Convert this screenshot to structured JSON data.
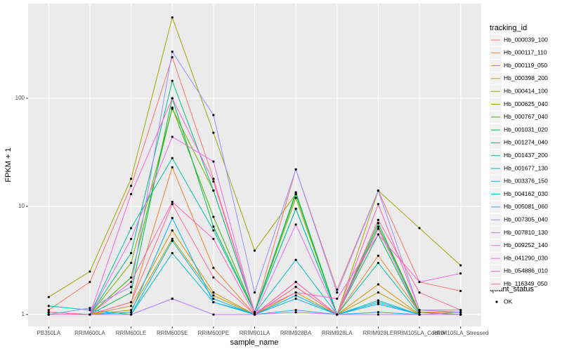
{
  "chart_data": {
    "type": "line",
    "x_label": "sample_name",
    "y_label": "FPKM + 1",
    "legend_title": "tracking_id",
    "legend2_title": "quant_status",
    "legend2_entries": [
      "OK"
    ],
    "log_scale": true,
    "grid": true,
    "legend_position": "right",
    "categories": [
      "PB350LA",
      "RRIM600LA",
      "RRIM600LE",
      "RRIM600SE",
      "RRIM600PE",
      "RRIM901LA",
      "RRIM928BA",
      "RRIM928LA",
      "RRIM928LE",
      "RRIM105LA_Control",
      "RRIM105LA_Stressed"
    ],
    "ylim": [
      0.776,
      753
    ],
    "yticks": [
      1,
      10,
      100
    ],
    "series": [
      {
        "name": "Hb_000039_100",
        "color": "#F8766D",
        "values": [
          1.1,
          2.0,
          15.5,
          240,
          18,
          1.05,
          22,
          1.7,
          14,
          2.0,
          1.65
        ]
      },
      {
        "name": "Hb_000117_110",
        "color": "#EA8331",
        "values": [
          1.05,
          1.0,
          1.3,
          23,
          2.7,
          1.0,
          2.0,
          1.0,
          3.5,
          1.05,
          1.05
        ]
      },
      {
        "name": "Hb_000119_050",
        "color": "#D89000",
        "values": [
          1.0,
          1.0,
          1.2,
          6.0,
          1.6,
          1.0,
          1.8,
          1.0,
          1.9,
          1.0,
          1.0
        ]
      },
      {
        "name": "Hb_000398_200",
        "color": "#C09B00",
        "values": [
          1.0,
          1.0,
          1.1,
          5.0,
          1.5,
          1.0,
          1.6,
          1.0,
          1.6,
          1.0,
          1.0
        ]
      },
      {
        "name": "Hb_000414_100",
        "color": "#A3A500",
        "values": [
          1.45,
          2.5,
          18,
          560,
          48,
          3.9,
          13,
          1.0,
          14,
          6.3,
          2.85
        ]
      },
      {
        "name": "Hb_000625_040",
        "color": "#7CAE00",
        "values": [
          1.0,
          1.0,
          3.0,
          80,
          14,
          1.05,
          12,
          1.0,
          7,
          1.05,
          1.0
        ]
      },
      {
        "name": "Hb_000767_040",
        "color": "#39B600",
        "values": [
          1.0,
          1.0,
          2.2,
          82,
          8,
          1.05,
          13,
          1.0,
          6.5,
          1.05,
          1.0
        ]
      },
      {
        "name": "Hb_001031_020",
        "color": "#00BB4E",
        "values": [
          1.0,
          1.0,
          1.6,
          100,
          6.5,
          1.05,
          9.5,
          1.0,
          5.5,
          1.0,
          1.0
        ]
      },
      {
        "name": "Hb_001274_040",
        "color": "#00BF7D",
        "values": [
          1.0,
          1.0,
          3.7,
          145,
          14,
          1.05,
          13.5,
          1.0,
          7,
          1.0,
          1.0
        ]
      },
      {
        "name": "Hb_001437_200",
        "color": "#00C1A3",
        "values": [
          1.0,
          1.0,
          6.3,
          28,
          6,
          1.05,
          9.5,
          1.0,
          3.0,
          1.0,
          1.0
        ]
      },
      {
        "name": "Hb_001677_130",
        "color": "#00BFC4",
        "values": [
          1.2,
          1.1,
          1.0,
          3.7,
          1.3,
          1.02,
          3.2,
          1.0,
          1.35,
          1.0,
          1.0
        ]
      },
      {
        "name": "Hb_003376_150",
        "color": "#00BAE0",
        "values": [
          1.0,
          1.0,
          1.0,
          4.8,
          1.4,
          1.0,
          1.4,
          1.0,
          1.3,
          1.0,
          1.0
        ]
      },
      {
        "name": "Hb_004162_030",
        "color": "#00B0F6",
        "values": [
          1.0,
          1.0,
          1.05,
          7.8,
          1.3,
          1.0,
          1.5,
          1.0,
          1.25,
          1.0,
          1.0
        ]
      },
      {
        "name": "Hb_005081_060",
        "color": "#35A2FF",
        "values": [
          1.0,
          1.0,
          1.0,
          1.4,
          1.0,
          1.0,
          1.1,
          1.0,
          1.05,
          1.0,
          1.0
        ]
      },
      {
        "name": "Hb_007305_040",
        "color": "#9590FF",
        "values": [
          1.0,
          1.15,
          1.8,
          270,
          70,
          1.6,
          22,
          1.6,
          14,
          1.1,
          1.05
        ]
      },
      {
        "name": "Hb_007810_130",
        "color": "#C77CFF",
        "values": [
          1.0,
          1.0,
          1.0,
          1.4,
          1.0,
          1.0,
          1.05,
          1.0,
          1.0,
          1.0,
          1.0
        ]
      },
      {
        "name": "Hb_009252_140",
        "color": "#E76BF3",
        "values": [
          1.0,
          1.0,
          5.0,
          44,
          26,
          1.0,
          6.8,
          1.0,
          6.2,
          1.0,
          1.05
        ]
      },
      {
        "name": "Hb_041290_030",
        "color": "#FA62DB",
        "values": [
          1.05,
          1.0,
          13,
          100,
          17,
          1.05,
          1.6,
          1.4,
          5.5,
          2.0,
          2.4
        ]
      },
      {
        "name": "Hb_054886_010",
        "color": "#FF62BC",
        "values": [
          1.0,
          1.0,
          2.0,
          11,
          5,
          1.0,
          2.0,
          1.0,
          10.5,
          1.1,
          1.1
        ]
      },
      {
        "name": "Hb_116349_050",
        "color": "#FF6C91",
        "values": [
          1.05,
          1.0,
          1.3,
          10.5,
          2.2,
          1.0,
          1.8,
          1.0,
          7.5,
          1.6,
          1.1
        ]
      }
    ]
  }
}
